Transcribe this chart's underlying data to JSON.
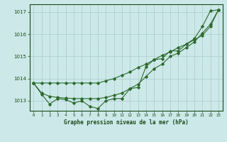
{
  "x": [
    0,
    1,
    2,
    3,
    4,
    5,
    6,
    7,
    8,
    9,
    10,
    11,
    12,
    13,
    14,
    15,
    16,
    17,
    18,
    19,
    20,
    21,
    22,
    23
  ],
  "line_zigzag": [
    1013.8,
    1013.3,
    1012.85,
    1013.1,
    1013.05,
    1012.9,
    1013.0,
    1012.75,
    1012.65,
    1013.0,
    1013.1,
    1013.1,
    1013.55,
    1013.6,
    1014.55,
    1014.85,
    1014.9,
    1015.25,
    1015.25,
    1015.55,
    1015.8,
    1016.35,
    1017.05,
    1017.1
  ],
  "line_smooth": [
    1013.8,
    1013.35,
    1013.2,
    1013.15,
    1013.12,
    1013.1,
    1013.1,
    1013.1,
    1013.1,
    1013.15,
    1013.25,
    1013.35,
    1013.55,
    1013.75,
    1014.1,
    1014.45,
    1014.65,
    1015.0,
    1015.15,
    1015.4,
    1015.65,
    1016.05,
    1016.45,
    1017.1
  ],
  "line_straight": [
    1013.8,
    1013.8,
    1013.8,
    1013.8,
    1013.8,
    1013.8,
    1013.8,
    1013.8,
    1013.8,
    1013.9,
    1014.0,
    1014.15,
    1014.3,
    1014.5,
    1014.65,
    1014.85,
    1015.05,
    1015.2,
    1015.4,
    1015.55,
    1015.75,
    1015.95,
    1016.35,
    1017.1
  ],
  "line_color": "#2d6a2d",
  "bg_color": "#cce8e8",
  "grid_color": "#aacccc",
  "text_color": "#1a4a1a",
  "xlabel": "Graphe pression niveau de la mer (hPa)",
  "ylim_min": 1012.55,
  "ylim_max": 1017.35,
  "yticks": [
    1013,
    1014,
    1015,
    1016,
    1017
  ],
  "xticks": [
    0,
    1,
    2,
    3,
    4,
    5,
    6,
    7,
    8,
    9,
    10,
    11,
    12,
    13,
    14,
    15,
    16,
    17,
    18,
    19,
    20,
    21,
    22,
    23
  ]
}
